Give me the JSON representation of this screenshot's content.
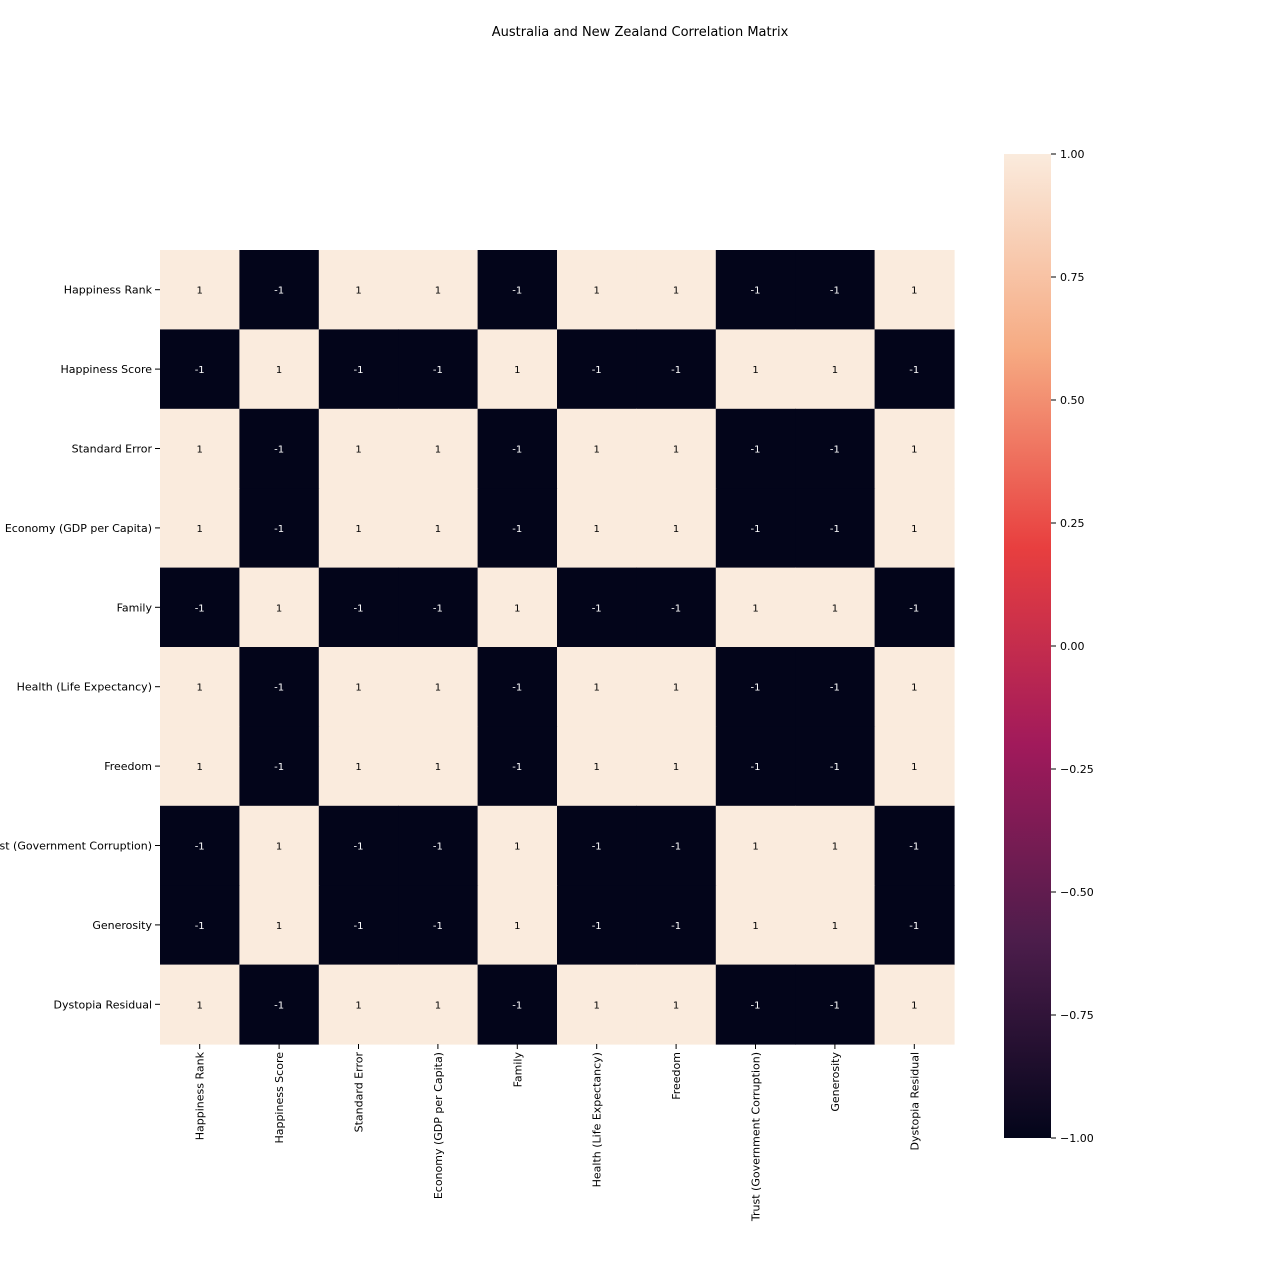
{
  "chart_data": {
    "type": "heatmap",
    "title": "Australia and New Zealand Correlation Matrix",
    "rows": [
      "Happiness Rank",
      "Happiness Score",
      "Standard Error",
      "Economy (GDP per Capita)",
      "Family",
      "Health (Life Expectancy)",
      "Freedom",
      "Trust (Government Corruption)",
      "Generosity",
      "Dystopia Residual"
    ],
    "columns": [
      "Happiness Rank",
      "Happiness Score",
      "Standard Error",
      "Economy (GDP per Capita)",
      "Family",
      "Health (Life Expectancy)",
      "Freedom",
      "Trust (Government Corruption)",
      "Generosity",
      "Dystopia Residual"
    ],
    "values": [
      [
        1,
        -1,
        1,
        1,
        -1,
        1,
        1,
        -1,
        -1,
        1
      ],
      [
        -1,
        1,
        -1,
        -1,
        1,
        -1,
        -1,
        1,
        1,
        -1
      ],
      [
        1,
        -1,
        1,
        1,
        -1,
        1,
        1,
        -1,
        -1,
        1
      ],
      [
        1,
        -1,
        1,
        1,
        -1,
        1,
        1,
        -1,
        -1,
        1
      ],
      [
        -1,
        1,
        -1,
        -1,
        1,
        -1,
        -1,
        1,
        1,
        -1
      ],
      [
        1,
        -1,
        1,
        1,
        -1,
        1,
        1,
        -1,
        -1,
        1
      ],
      [
        1,
        -1,
        1,
        1,
        -1,
        1,
        1,
        -1,
        -1,
        1
      ],
      [
        -1,
        1,
        -1,
        -1,
        1,
        -1,
        -1,
        1,
        1,
        -1
      ],
      [
        -1,
        1,
        -1,
        -1,
        1,
        -1,
        -1,
        1,
        1,
        -1
      ],
      [
        1,
        -1,
        1,
        1,
        -1,
        1,
        1,
        -1,
        -1,
        1
      ]
    ],
    "value_labels": [
      [
        "1",
        "-1",
        "1",
        "1",
        "-1",
        "1",
        "1",
        "-1",
        "-1",
        "1"
      ],
      [
        "-1",
        "1",
        "-1",
        "-1",
        "1",
        "-1",
        "-1",
        "1",
        "1",
        "-1"
      ],
      [
        "1",
        "-1",
        "1",
        "1",
        "-1",
        "1",
        "1",
        "-1",
        "-1",
        "1"
      ],
      [
        "1",
        "-1",
        "1",
        "1",
        "-1",
        "1",
        "1",
        "-1",
        "-1",
        "1"
      ],
      [
        "-1",
        "1",
        "-1",
        "-1",
        "1",
        "-1",
        "-1",
        "1",
        "1",
        "-1"
      ],
      [
        "1",
        "-1",
        "1",
        "1",
        "-1",
        "1",
        "1",
        "-1",
        "-1",
        "1"
      ],
      [
        "1",
        "-1",
        "1",
        "1",
        "-1",
        "1",
        "1",
        "-1",
        "-1",
        "1"
      ],
      [
        "-1",
        "1",
        "-1",
        "-1",
        "1",
        "-1",
        "-1",
        "1",
        "1",
        "-1"
      ],
      [
        "-1",
        "1",
        "-1",
        "-1",
        "1",
        "-1",
        "-1",
        "1",
        "1",
        "-1"
      ],
      [
        "1",
        "-1",
        "1",
        "1",
        "-1",
        "1",
        "1",
        "-1",
        "-1",
        "1"
      ]
    ],
    "colorbar": {
      "range": [
        -1.0,
        1.0
      ],
      "ticks": [
        1.0,
        0.75,
        0.5,
        0.25,
        0.0,
        -0.25,
        -0.5,
        -0.75,
        -1.0
      ],
      "tick_labels": [
        "1.00",
        "0.75",
        "0.50",
        "0.25",
        "0.00",
        "−0.25",
        "−0.50",
        "−0.75",
        "−1.00"
      ],
      "colormap": "rocket",
      "stops": [
        "#03051a",
        "#4c1d4b",
        "#a11a5b",
        "#e83f3f",
        "#f6aa82",
        "#faebdd"
      ],
      "position": "right"
    },
    "grid": false
  }
}
